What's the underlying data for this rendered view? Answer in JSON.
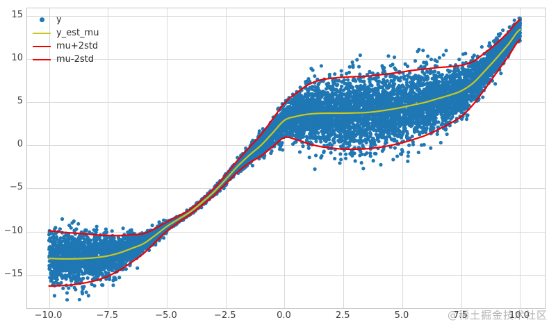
{
  "watermark": "@稀土掘金技术社区",
  "chart_data": {
    "type": "scatter",
    "title": "",
    "xlabel": "",
    "ylabel": "",
    "grid": true,
    "legend_position": "upper-left",
    "xlim": [
      -10.93,
      11.05
    ],
    "ylim": [
      -18.87,
      15.86
    ],
    "colors": {
      "scatter": "#1f77b4",
      "mu_line": "#c8c81e",
      "band_line": "#f20000",
      "grid": "#d9d9d9",
      "spine": "#c3c3c3",
      "tick_text": "#3b3b3b"
    },
    "legend": [
      {
        "label": "y",
        "type": "dot",
        "color": "#1f77b4"
      },
      {
        "label": "y_est_mu",
        "type": "line",
        "color": "#c8c81e"
      },
      {
        "label": "mu+2std",
        "type": "line",
        "color": "#f20000"
      },
      {
        "label": "mu-2std",
        "type": "line",
        "color": "#f20000"
      }
    ],
    "x_ticks": {
      "values": [
        -10,
        -7.5,
        -5,
        -2.5,
        0,
        2.5,
        5,
        7.5,
        10
      ],
      "labels": [
        "−10.0",
        "−7.5",
        "−5.0",
        "−2.5",
        "0.0",
        "2.5",
        "5.0",
        "7.5",
        "10.0"
      ]
    },
    "y_ticks": {
      "values": [
        15,
        10,
        5,
        0,
        -5,
        -10,
        -15
      ],
      "labels": [
        "15",
        "10",
        "5",
        "0",
        "−5",
        "−10",
        "−15"
      ]
    },
    "curves": {
      "x": [
        -10,
        -9.5,
        -9,
        -8.5,
        -8,
        -7.5,
        -7,
        -6.5,
        -6,
        -5.5,
        -5,
        -4.5,
        -4,
        -3.5,
        -3,
        -2.5,
        -2,
        -1.5,
        -1,
        -0.5,
        0,
        0.5,
        1,
        1.5,
        2,
        2.5,
        3,
        3.5,
        4,
        4.5,
        5,
        5.5,
        6,
        6.5,
        7,
        7.5,
        8,
        8.5,
        9,
        9.5,
        10
      ],
      "mu": [
        -13.1,
        -13.15,
        -13.15,
        -13.1,
        -13.0,
        -12.8,
        -12.45,
        -11.95,
        -11.4,
        -10.45,
        -9.4,
        -8.55,
        -7.7,
        -6.6,
        -5.4,
        -3.95,
        -2.45,
        -1.15,
        0.0,
        1.45,
        2.9,
        3.35,
        3.6,
        3.7,
        3.72,
        3.72,
        3.75,
        3.8,
        3.95,
        4.15,
        4.4,
        4.7,
        5.0,
        5.4,
        5.8,
        6.3,
        7.2,
        8.6,
        10.1,
        11.7,
        13.4
      ],
      "std": [
        1.6,
        1.55,
        1.5,
        1.42,
        1.32,
        1.18,
        1.0,
        0.8,
        0.58,
        0.4,
        0.27,
        0.18,
        0.15,
        0.17,
        0.2,
        0.26,
        0.33,
        0.45,
        0.62,
        0.8,
        1.0,
        1.35,
        1.7,
        1.92,
        2.02,
        2.08,
        2.1,
        2.1,
        2.1,
        2.08,
        2.05,
        2.0,
        1.92,
        1.8,
        1.65,
        1.48,
        1.25,
        1.05,
        0.85,
        0.7,
        0.58
      ],
      "band_multiplier": 2
    },
    "scatter": {
      "series_name": "y",
      "n_points": 10000,
      "x_range": [
        -10,
        10
      ],
      "marker_radius": 2.6,
      "seed": 42,
      "distribution": "y = mu(x) + std(x) * N(0,1)"
    }
  }
}
